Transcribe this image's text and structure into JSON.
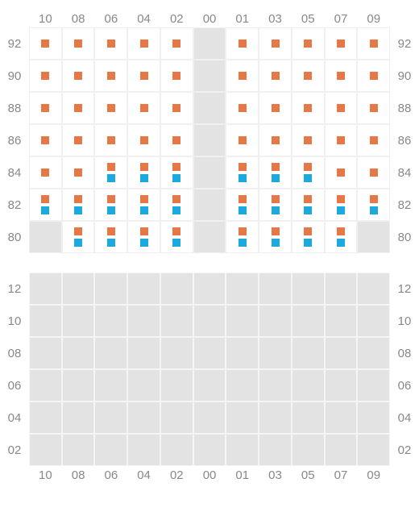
{
  "colors": {
    "orange": "#e67848",
    "blue": "#1ca9e0",
    "cell_bg": "#ffffff",
    "cell_gray": "#e3e3e3",
    "grid_line": "#f0f0f0",
    "label_color": "#888888"
  },
  "top_section": {
    "x_labels": [
      "10",
      "08",
      "06",
      "04",
      "02",
      "00",
      "01",
      "03",
      "05",
      "07",
      "09"
    ],
    "y_labels": [
      "92",
      "90",
      "88",
      "86",
      "84",
      "82",
      "80"
    ],
    "rows": [
      {
        "label": "92",
        "cells": [
          {
            "bg": "white",
            "markers": [
              "orange"
            ]
          },
          {
            "bg": "white",
            "markers": [
              "orange"
            ]
          },
          {
            "bg": "white",
            "markers": [
              "orange"
            ]
          },
          {
            "bg": "white",
            "markers": [
              "orange"
            ]
          },
          {
            "bg": "white",
            "markers": [
              "orange"
            ]
          },
          {
            "bg": "gray",
            "markers": []
          },
          {
            "bg": "white",
            "markers": [
              "orange"
            ]
          },
          {
            "bg": "white",
            "markers": [
              "orange"
            ]
          },
          {
            "bg": "white",
            "markers": [
              "orange"
            ]
          },
          {
            "bg": "white",
            "markers": [
              "orange"
            ]
          },
          {
            "bg": "white",
            "markers": [
              "orange"
            ]
          }
        ]
      },
      {
        "label": "90",
        "cells": [
          {
            "bg": "white",
            "markers": [
              "orange"
            ]
          },
          {
            "bg": "white",
            "markers": [
              "orange"
            ]
          },
          {
            "bg": "white",
            "markers": [
              "orange"
            ]
          },
          {
            "bg": "white",
            "markers": [
              "orange"
            ]
          },
          {
            "bg": "white",
            "markers": [
              "orange"
            ]
          },
          {
            "bg": "gray",
            "markers": []
          },
          {
            "bg": "white",
            "markers": [
              "orange"
            ]
          },
          {
            "bg": "white",
            "markers": [
              "orange"
            ]
          },
          {
            "bg": "white",
            "markers": [
              "orange"
            ]
          },
          {
            "bg": "white",
            "markers": [
              "orange"
            ]
          },
          {
            "bg": "white",
            "markers": [
              "orange"
            ]
          }
        ]
      },
      {
        "label": "88",
        "cells": [
          {
            "bg": "white",
            "markers": [
              "orange"
            ]
          },
          {
            "bg": "white",
            "markers": [
              "orange"
            ]
          },
          {
            "bg": "white",
            "markers": [
              "orange"
            ]
          },
          {
            "bg": "white",
            "markers": [
              "orange"
            ]
          },
          {
            "bg": "white",
            "markers": [
              "orange"
            ]
          },
          {
            "bg": "gray",
            "markers": []
          },
          {
            "bg": "white",
            "markers": [
              "orange"
            ]
          },
          {
            "bg": "white",
            "markers": [
              "orange"
            ]
          },
          {
            "bg": "white",
            "markers": [
              "orange"
            ]
          },
          {
            "bg": "white",
            "markers": [
              "orange"
            ]
          },
          {
            "bg": "white",
            "markers": [
              "orange"
            ]
          }
        ]
      },
      {
        "label": "86",
        "cells": [
          {
            "bg": "white",
            "markers": [
              "orange"
            ]
          },
          {
            "bg": "white",
            "markers": [
              "orange"
            ]
          },
          {
            "bg": "white",
            "markers": [
              "orange"
            ]
          },
          {
            "bg": "white",
            "markers": [
              "orange"
            ]
          },
          {
            "bg": "white",
            "markers": [
              "orange"
            ]
          },
          {
            "bg": "gray",
            "markers": []
          },
          {
            "bg": "white",
            "markers": [
              "orange"
            ]
          },
          {
            "bg": "white",
            "markers": [
              "orange"
            ]
          },
          {
            "bg": "white",
            "markers": [
              "orange"
            ]
          },
          {
            "bg": "white",
            "markers": [
              "orange"
            ]
          },
          {
            "bg": "white",
            "markers": [
              "orange"
            ]
          }
        ]
      },
      {
        "label": "84",
        "cells": [
          {
            "bg": "white",
            "markers": [
              "orange"
            ]
          },
          {
            "bg": "white",
            "markers": [
              "orange"
            ]
          },
          {
            "bg": "white",
            "markers": [
              "orange",
              "blue"
            ]
          },
          {
            "bg": "white",
            "markers": [
              "orange",
              "blue"
            ]
          },
          {
            "bg": "white",
            "markers": [
              "orange",
              "blue"
            ]
          },
          {
            "bg": "gray",
            "markers": []
          },
          {
            "bg": "white",
            "markers": [
              "orange",
              "blue"
            ]
          },
          {
            "bg": "white",
            "markers": [
              "orange",
              "blue"
            ]
          },
          {
            "bg": "white",
            "markers": [
              "orange",
              "blue"
            ]
          },
          {
            "bg": "white",
            "markers": [
              "orange"
            ]
          },
          {
            "bg": "white",
            "markers": [
              "orange"
            ]
          }
        ]
      },
      {
        "label": "82",
        "cells": [
          {
            "bg": "white",
            "markers": [
              "orange",
              "blue"
            ]
          },
          {
            "bg": "white",
            "markers": [
              "orange",
              "blue"
            ]
          },
          {
            "bg": "white",
            "markers": [
              "orange",
              "blue"
            ]
          },
          {
            "bg": "white",
            "markers": [
              "orange",
              "blue"
            ]
          },
          {
            "bg": "white",
            "markers": [
              "orange",
              "blue"
            ]
          },
          {
            "bg": "gray",
            "markers": []
          },
          {
            "bg": "white",
            "markers": [
              "orange",
              "blue"
            ]
          },
          {
            "bg": "white",
            "markers": [
              "orange",
              "blue"
            ]
          },
          {
            "bg": "white",
            "markers": [
              "orange",
              "blue"
            ]
          },
          {
            "bg": "white",
            "markers": [
              "orange",
              "blue"
            ]
          },
          {
            "bg": "white",
            "markers": [
              "orange",
              "blue"
            ]
          }
        ]
      },
      {
        "label": "80",
        "cells": [
          {
            "bg": "gray",
            "markers": []
          },
          {
            "bg": "white",
            "markers": [
              "orange",
              "blue"
            ]
          },
          {
            "bg": "white",
            "markers": [
              "orange",
              "blue"
            ]
          },
          {
            "bg": "white",
            "markers": [
              "orange",
              "blue"
            ]
          },
          {
            "bg": "white",
            "markers": [
              "orange",
              "blue"
            ]
          },
          {
            "bg": "gray",
            "markers": []
          },
          {
            "bg": "white",
            "markers": [
              "orange",
              "blue"
            ]
          },
          {
            "bg": "white",
            "markers": [
              "orange",
              "blue"
            ]
          },
          {
            "bg": "white",
            "markers": [
              "orange",
              "blue"
            ]
          },
          {
            "bg": "white",
            "markers": [
              "orange",
              "blue"
            ]
          },
          {
            "bg": "gray",
            "markers": []
          }
        ]
      }
    ]
  },
  "bottom_section": {
    "x_labels": [
      "10",
      "08",
      "06",
      "04",
      "02",
      "00",
      "01",
      "03",
      "05",
      "07",
      "09"
    ],
    "y_labels": [
      "12",
      "10",
      "08",
      "06",
      "04",
      "02"
    ],
    "rows": [
      {
        "label": "12",
        "cells": [
          {
            "bg": "gray"
          },
          {
            "bg": "gray"
          },
          {
            "bg": "gray"
          },
          {
            "bg": "gray"
          },
          {
            "bg": "gray"
          },
          {
            "bg": "gray"
          },
          {
            "bg": "gray"
          },
          {
            "bg": "gray"
          },
          {
            "bg": "gray"
          },
          {
            "bg": "gray"
          },
          {
            "bg": "gray"
          }
        ]
      },
      {
        "label": "10",
        "cells": [
          {
            "bg": "gray"
          },
          {
            "bg": "gray"
          },
          {
            "bg": "gray"
          },
          {
            "bg": "gray"
          },
          {
            "bg": "gray"
          },
          {
            "bg": "gray"
          },
          {
            "bg": "gray"
          },
          {
            "bg": "gray"
          },
          {
            "bg": "gray"
          },
          {
            "bg": "gray"
          },
          {
            "bg": "gray"
          }
        ]
      },
      {
        "label": "08",
        "cells": [
          {
            "bg": "gray"
          },
          {
            "bg": "gray"
          },
          {
            "bg": "gray"
          },
          {
            "bg": "gray"
          },
          {
            "bg": "gray"
          },
          {
            "bg": "gray"
          },
          {
            "bg": "gray"
          },
          {
            "bg": "gray"
          },
          {
            "bg": "gray"
          },
          {
            "bg": "gray"
          },
          {
            "bg": "gray"
          }
        ]
      },
      {
        "label": "06",
        "cells": [
          {
            "bg": "gray"
          },
          {
            "bg": "gray"
          },
          {
            "bg": "gray"
          },
          {
            "bg": "gray"
          },
          {
            "bg": "gray"
          },
          {
            "bg": "gray"
          },
          {
            "bg": "gray"
          },
          {
            "bg": "gray"
          },
          {
            "bg": "gray"
          },
          {
            "bg": "gray"
          },
          {
            "bg": "gray"
          }
        ]
      },
      {
        "label": "04",
        "cells": [
          {
            "bg": "gray"
          },
          {
            "bg": "gray"
          },
          {
            "bg": "gray"
          },
          {
            "bg": "gray"
          },
          {
            "bg": "gray"
          },
          {
            "bg": "gray"
          },
          {
            "bg": "gray"
          },
          {
            "bg": "gray"
          },
          {
            "bg": "gray"
          },
          {
            "bg": "gray"
          },
          {
            "bg": "gray"
          }
        ]
      },
      {
        "label": "02",
        "cells": [
          {
            "bg": "gray"
          },
          {
            "bg": "gray"
          },
          {
            "bg": "gray"
          },
          {
            "bg": "gray"
          },
          {
            "bg": "gray"
          },
          {
            "bg": "gray"
          },
          {
            "bg": "gray"
          },
          {
            "bg": "gray"
          },
          {
            "bg": "gray"
          },
          {
            "bg": "gray"
          },
          {
            "bg": "gray"
          }
        ]
      }
    ]
  }
}
